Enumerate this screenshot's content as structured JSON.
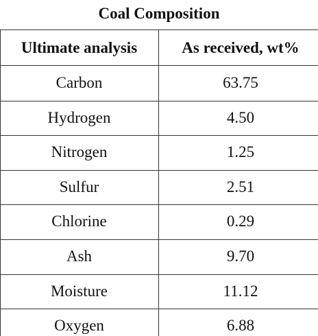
{
  "title": "Coal Composition",
  "table": {
    "header": [
      "Ultimate analysis",
      "As received, wt%"
    ],
    "rows": [
      [
        "Carbon",
        "63.75"
      ],
      [
        "Hydrogen",
        "4.50"
      ],
      [
        "Nitrogen",
        "1.25"
      ],
      [
        "Sulfur",
        "2.51"
      ],
      [
        "Chlorine",
        "0.29"
      ],
      [
        "Ash",
        "9.70"
      ],
      [
        "Moisture",
        "11.12"
      ],
      [
        "Oxygen",
        "6.88"
      ]
    ]
  }
}
